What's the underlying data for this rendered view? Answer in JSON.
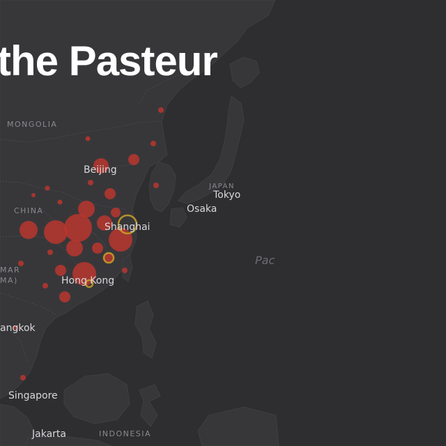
{
  "headline": "the Pasteur",
  "labels": {
    "mongolia": "MONGOLIA",
    "china": "CHINA",
    "japan": "JAPAN",
    "indonesia": "INDONESIA",
    "myanmar_1": "MAR",
    "myanmar_2": "MA)",
    "beijing": "Beijing",
    "shanghai": "Shanghai",
    "hong_kong": "Hong Kong",
    "tokyo": "Tokyo",
    "osaka": "Osaka",
    "bangkok": "angkok",
    "singapore": "Singapore",
    "jakarta": "Jakarta",
    "pacific": "Pac"
  },
  "colors": {
    "land": "#38383b",
    "water": "#2e2e30",
    "border": "#4c4c50",
    "case_marker": "#b8362f",
    "highlight_marker": "#c9a227"
  }
}
